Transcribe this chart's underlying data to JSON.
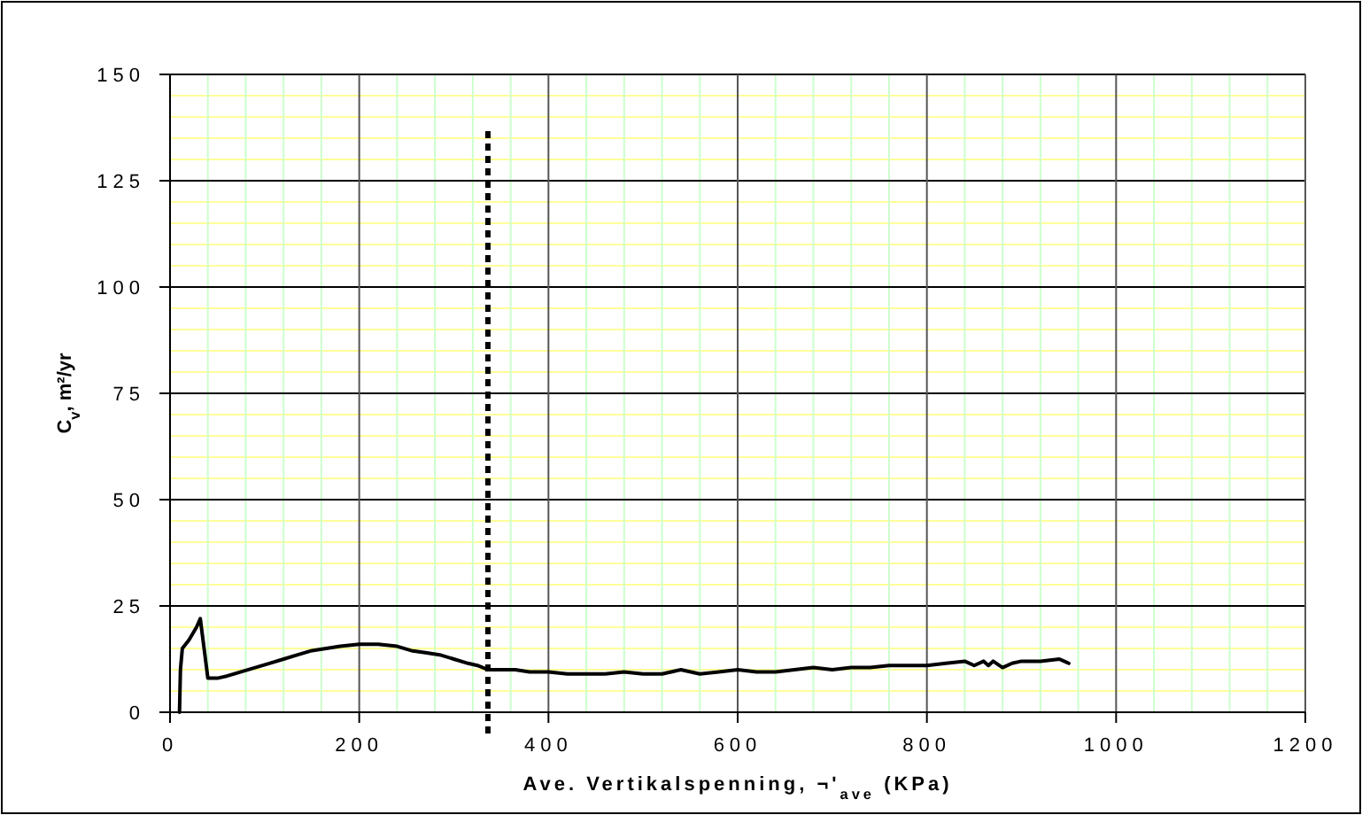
{
  "chart_data": {
    "type": "line",
    "xlabel": "Ave. Vertikalspenning, ¬'$_{ave}$ (KPa)",
    "ylabel": "C$_{v}$, m²/yr",
    "xlim": [
      0,
      1200
    ],
    "xticks": [
      0,
      {
        "value": 40,
        "label": null
      },
      {
        "value": 80,
        "label": null
      },
      {
        "value": 120,
        "label": null
      },
      {
        "value": 160,
        "label": null
      },
      200,
      {
        "value": 240,
        "label": null
      },
      {
        "value": 280,
        "label": null
      },
      {
        "value": 320,
        "label": null
      },
      {
        "value": 360,
        "label": null
      },
      400,
      {
        "value": 440,
        "label": null
      },
      {
        "value": 480,
        "label": null
      },
      {
        "value": 520,
        "label": null
      },
      {
        "value": 560,
        "label": null
      },
      600,
      {
        "value": 640,
        "label": null
      },
      {
        "value": 680,
        "label": null
      },
      {
        "value": 720,
        "label": null
      },
      {
        "value": 760,
        "label": null
      },
      800,
      {
        "value": 840,
        "label": null
      },
      {
        "value": 880,
        "label": null
      },
      {
        "value": 920,
        "label": null
      },
      {
        "value": 960,
        "label": null
      },
      1000,
      {
        "value": 1040,
        "label": null
      },
      {
        "value": 1080,
        "label": null
      },
      {
        "value": 1120,
        "label": null
      },
      {
        "value": 1160,
        "label": null
      },
      1200
    ],
    "ylim": [
      0,
      150
    ],
    "yticks": [
      0,
      {
        "value": 5,
        "label": null
      },
      {
        "value": 10,
        "label": null
      },
      {
        "value": 15,
        "label": null
      },
      {
        "value": 20,
        "label": null
      },
      25,
      {
        "value": 30,
        "label": null
      },
      {
        "value": 35,
        "label": null
      },
      {
        "value": 40,
        "label": null
      },
      {
        "value": 45,
        "label": null
      },
      50,
      {
        "value": 55,
        "label": null
      },
      {
        "value": 60,
        "label": null
      },
      {
        "value": 65,
        "label": null
      },
      {
        "value": 70,
        "label": null
      },
      75,
      {
        "value": 80,
        "label": null
      },
      {
        "value": 85,
        "label": null
      },
      {
        "value": 90,
        "label": null
      },
      {
        "value": 95,
        "label": null
      },
      100,
      {
        "value": 105,
        "label": null
      },
      {
        "value": 110,
        "label": null
      },
      {
        "value": 115,
        "label": null
      },
      {
        "value": 120,
        "label": null
      },
      125,
      {
        "value": 130,
        "label": null
      },
      {
        "value": 135,
        "label": null
      },
      {
        "value": 140,
        "label": null
      },
      {
        "value": 145,
        "label": null
      },
      150
    ],
    "grid": true,
    "marker": "none",
    "line_style": "solid",
    "series": [
      {
        "color": "#000000",
        "x": [
          10,
          11,
          13,
          20,
          28,
          32,
          36,
          40,
          50,
          60,
          75,
          90,
          105,
          120,
          135,
          150,
          165,
          180,
          200,
          220,
          240,
          255,
          270,
          285,
          300,
          315,
          325,
          336,
          350,
          365,
          380,
          400,
          420,
          440,
          460,
          480,
          500,
          520,
          540,
          560,
          580,
          600,
          620,
          640,
          660,
          680,
          700,
          720,
          740,
          760,
          780,
          800,
          820,
          840,
          850,
          860,
          865,
          870,
          880,
          890,
          900,
          920,
          940,
          945,
          950
        ],
        "values": [
          0,
          10,
          15,
          17,
          20,
          22,
          15,
          8,
          8,
          8.5,
          9.5,
          10.5,
          11.5,
          12.5,
          13.5,
          14.5,
          15,
          15.5,
          16,
          16,
          15.5,
          14.5,
          14,
          13.5,
          12.5,
          11.5,
          11,
          10,
          10,
          10,
          9.5,
          9.5,
          9,
          9,
          9,
          9.5,
          9,
          9,
          10,
          9,
          9.5,
          10,
          9.5,
          9.5,
          10,
          10.5,
          10,
          10.5,
          10.5,
          11,
          11,
          11,
          11.5,
          12,
          11,
          12,
          11,
          12,
          10.5,
          11.5,
          12,
          12,
          12.5,
          12,
          11.5
        ]
      }
    ],
    "ref_lines": [
      {
        "axis": "x",
        "value": 336,
        "color": "#000000",
        "line_style": "dashed"
      }
    ]
  }
}
